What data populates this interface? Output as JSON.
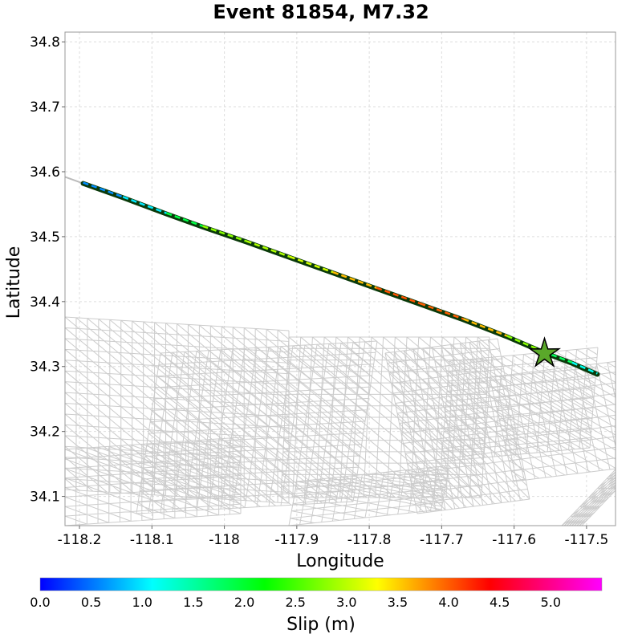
{
  "chart_data": {
    "type": "map",
    "title": "Event 81854, M7.32",
    "xlabel": "Longitude",
    "ylabel": "Latitude",
    "xlim": [
      -118.22,
      -117.46
    ],
    "ylim": [
      34.055,
      34.815
    ],
    "xticks": [
      -118.2,
      -118.1,
      -118.0,
      -117.9,
      -117.8,
      -117.7,
      -117.6,
      -117.5
    ],
    "xtick_labels": [
      "-118.2",
      "-118.1",
      "-118",
      "-117.9",
      "-117.8",
      "-117.7",
      "-117.6",
      "-117.5"
    ],
    "yticks": [
      34.1,
      34.2,
      34.3,
      34.4,
      34.5,
      34.6,
      34.7,
      34.8
    ],
    "ytick_labels": [
      "34.1",
      "34.2",
      "34.3",
      "34.4",
      "34.5",
      "34.6",
      "34.7",
      "34.8"
    ],
    "grid": true,
    "rupture_trace": {
      "outline_color": "#0a3a0a",
      "points": [
        {
          "lon": -118.195,
          "lat": 34.582,
          "slip": 0.4
        },
        {
          "lon": -118.14,
          "lat": 34.56,
          "slip": 0.8
        },
        {
          "lon": -118.08,
          "lat": 34.535,
          "slip": 1.2
        },
        {
          "lon": -118.03,
          "lat": 34.515,
          "slip": 2.6
        },
        {
          "lon": -117.97,
          "lat": 34.492,
          "slip": 3.0
        },
        {
          "lon": -117.91,
          "lat": 34.468,
          "slip": 2.9
        },
        {
          "lon": -117.85,
          "lat": 34.444,
          "slip": 3.3
        },
        {
          "lon": -117.79,
          "lat": 34.42,
          "slip": 3.9
        },
        {
          "lon": -117.73,
          "lat": 34.396,
          "slip": 4.2
        },
        {
          "lon": -117.67,
          "lat": 34.372,
          "slip": 3.8
        },
        {
          "lon": -117.61,
          "lat": 34.346,
          "slip": 3.4
        },
        {
          "lon": -117.56,
          "lat": 34.322,
          "slip": 2.2
        },
        {
          "lon": -117.52,
          "lat": 34.305,
          "slip": 1.4
        },
        {
          "lon": -117.485,
          "lat": 34.288,
          "slip": 0.9
        }
      ],
      "gray_extension": [
        {
          "lon": -118.22,
          "lat": 34.592
        },
        {
          "lon": -118.195,
          "lat": 34.582
        }
      ]
    },
    "hypocenter": {
      "lon": -117.558,
      "lat": 34.32,
      "marker": "star",
      "color": "#5aa82a"
    },
    "background_mesh": {
      "color": "#cccccc"
    },
    "colorbar": {
      "label": "Slip (m)",
      "min": 0,
      "max": 5.5,
      "ticks": [
        0.0,
        0.5,
        1.0,
        1.5,
        2.0,
        2.5,
        3.0,
        3.5,
        4.0,
        4.5,
        5.0
      ],
      "tick_labels": [
        "0.0",
        "0.5",
        "1.0",
        "1.5",
        "2.0",
        "2.5",
        "3.0",
        "3.5",
        "4.0",
        "4.5",
        "5.0"
      ],
      "colors": [
        "#0000ff",
        "#00ffff",
        "#00ff00",
        "#ffff00",
        "#ff0000",
        "#ff00ff"
      ]
    }
  }
}
